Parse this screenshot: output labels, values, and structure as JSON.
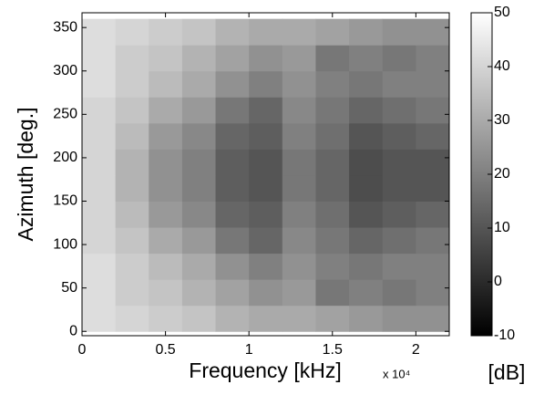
{
  "chart_data": {
    "type": "heatmap",
    "x_label": "Frequency [kHz]",
    "y_label": "Azimuth [deg.]",
    "x_multiplier": "x 10⁴",
    "x": [
      1000,
      3000,
      5000,
      7000,
      9000,
      11000,
      13000,
      15000,
      17000,
      19000,
      21000
    ],
    "y": [
      15,
      45,
      75,
      105,
      135,
      165,
      195,
      225,
      255,
      285,
      315,
      345
    ],
    "values": [
      [
        42,
        40,
        38,
        36,
        32,
        30,
        30,
        28,
        26,
        24,
        24
      ],
      [
        42,
        38,
        36,
        32,
        28,
        24,
        26,
        18,
        20,
        18,
        20
      ],
      [
        42,
        38,
        34,
        30,
        24,
        20,
        24,
        20,
        18,
        20,
        20
      ],
      [
        40,
        36,
        30,
        26,
        18,
        14,
        22,
        18,
        14,
        16,
        18
      ],
      [
        40,
        34,
        26,
        22,
        14,
        12,
        20,
        16,
        10,
        12,
        14
      ],
      [
        40,
        32,
        24,
        20,
        12,
        10,
        18,
        14,
        8,
        10,
        10
      ],
      [
        40,
        32,
        24,
        20,
        12,
        10,
        18,
        14,
        8,
        10,
        10
      ],
      [
        40,
        34,
        26,
        22,
        14,
        12,
        20,
        16,
        10,
        12,
        14
      ],
      [
        40,
        36,
        30,
        26,
        18,
        14,
        22,
        18,
        14,
        16,
        18
      ],
      [
        42,
        38,
        34,
        30,
        24,
        20,
        24,
        20,
        18,
        20,
        20
      ],
      [
        42,
        38,
        36,
        32,
        28,
        24,
        26,
        18,
        20,
        18,
        20
      ],
      [
        42,
        40,
        38,
        36,
        32,
        30,
        30,
        28,
        26,
        24,
        24
      ]
    ],
    "xlim": [
      0,
      22000
    ],
    "xticks": [
      0,
      {
        "value": 5000,
        "label": "0.5"
      },
      {
        "value": 10000,
        "label": "1"
      },
      {
        "value": 15000,
        "label": "1.5"
      },
      {
        "value": 20000,
        "label": "2"
      }
    ],
    "ylim": [
      -5,
      367
    ],
    "yticks": [
      0,
      50,
      100,
      150,
      200,
      250,
      300,
      350
    ],
    "clim": [
      -10,
      50
    ],
    "cticks": [
      -10,
      0,
      10,
      20,
      30,
      40,
      50
    ],
    "colorbar_label": "[dB]",
    "colormap": "gray"
  }
}
